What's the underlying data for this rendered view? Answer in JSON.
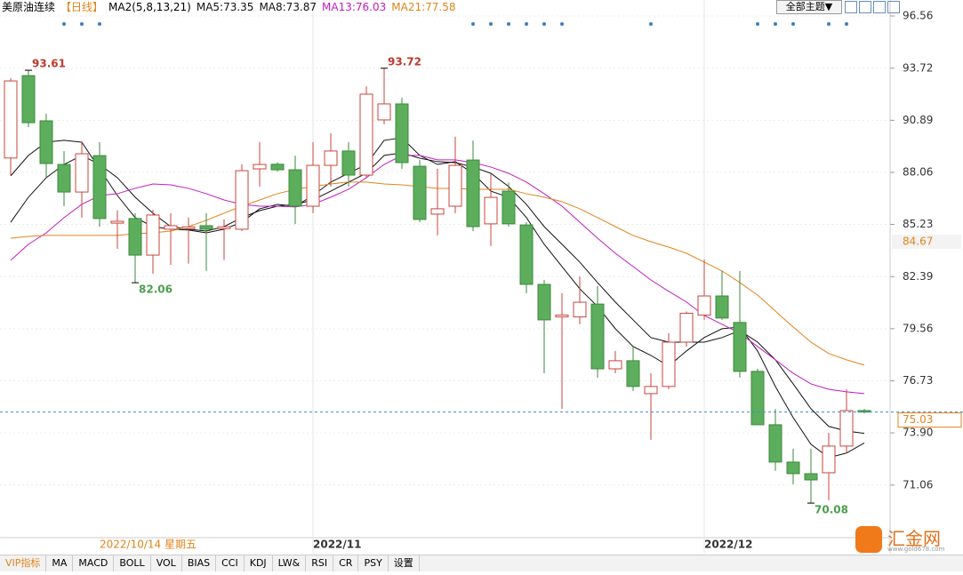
{
  "chart_data": {
    "type": "candlestick",
    "title": "美原油连续",
    "period": "【日线】",
    "indicator": "MA2(5,8,13,21)",
    "theme_button": "全部主题▼",
    "categories": [
      null,
      null,
      null,
      null,
      null,
      null,
      null,
      null,
      null,
      null,
      null,
      null,
      null,
      null,
      null,
      null,
      null,
      "2022/11",
      null,
      null,
      null,
      null,
      null,
      null,
      null,
      null,
      null,
      null,
      null,
      null,
      null,
      null,
      null,
      null,
      null,
      null,
      null,
      null,
      null,
      "2022/12",
      null,
      null,
      null,
      null,
      null,
      null,
      null,
      null,
      null
    ],
    "cursor_label": "2022/10/14 星期五",
    "marker_value": 84.67,
    "ylim": [
      68.2,
      96.56
    ],
    "yticks": [
      96.56,
      93.72,
      90.89,
      88.06,
      85.23,
      82.39,
      79.56,
      76.73,
      {
        "value": 73.9,
        "label": "73.90"
      },
      71.06
    ],
    "grid": true,
    "up_color": "#c8463c",
    "down_color": "#5cae5c",
    "last_line_color": "#3a8bc8",
    "series": [
      {
        "name": "美原油连续",
        "open": [
          88.84,
          93.32,
          90.86,
          88.49,
          86.99,
          88.97,
          85.3,
          85.55,
          83.56,
          84.97,
          85.0,
          85.16,
          85.0,
          84.97,
          88.25,
          88.5,
          88.2,
          86.22,
          88.44,
          89.22,
          87.91,
          90.91,
          91.78,
          88.39,
          85.79,
          86.22,
          88.73,
          85.26,
          87.04,
          85.2,
          81.97,
          80.2,
          80.2,
          80.9,
          77.38,
          77.82,
          76.03,
          76.42,
          78.83,
          80.3,
          81.34,
          79.9,
          77.24,
          74.34,
          72.31,
          71.68,
          71.73,
          73.18,
          75.11
        ],
        "high": [
          93.18,
          93.61,
          91.25,
          89.22,
          89.7,
          89.7,
          86.0,
          85.84,
          86.03,
          85.84,
          85.6,
          85.84,
          85.5,
          88.5,
          89.7,
          88.6,
          88.97,
          89.7,
          90.18,
          89.7,
          92.74,
          93.72,
          92.12,
          88.73,
          88.25,
          90.0,
          89.79,
          88.0,
          87.5,
          85.35,
          82.21,
          81.49,
          82.4,
          81.88,
          78.35,
          78.59,
          77.14,
          79.31,
          80.5,
          83.32,
          82.7,
          82.7,
          77.38,
          75.2,
          73.04,
          73.04,
          73.9,
          76.27,
          75.2
        ],
        "low": [
          87.9,
          90.52,
          87.77,
          86.22,
          85.59,
          85.11,
          83.9,
          82.06,
          82.55,
          83.03,
          83.1,
          82.7,
          83.3,
          84.87,
          87.29,
          88.1,
          85.25,
          85.84,
          87.29,
          87.29,
          87.77,
          90.67,
          88.25,
          85.35,
          84.63,
          85.84,
          84.87,
          84.05,
          85.11,
          81.49,
          77.14,
          75.2,
          79.8,
          76.9,
          77.14,
          76.18,
          73.52,
          76.27,
          78.59,
          80.04,
          80.04,
          76.9,
          74.34,
          71.83,
          71.1,
          70.08,
          70.23,
          72.79,
          74.95
        ],
        "close": [
          93.03,
          90.76,
          88.54,
          86.99,
          89.07,
          85.55,
          85.4,
          83.56,
          85.74,
          85.16,
          85.1,
          84.97,
          85.1,
          88.15,
          88.49,
          88.2,
          86.22,
          88.44,
          89.22,
          87.91,
          92.31,
          91.78,
          88.59,
          85.5,
          86.08,
          88.44,
          85.11,
          86.7,
          85.26,
          81.97,
          80.04,
          80.3,
          81.0,
          77.38,
          77.82,
          76.42,
          76.42,
          78.83,
          80.4,
          81.34,
          80.14,
          77.24,
          74.34,
          72.31,
          71.68,
          71.34,
          73.18,
          75.11,
          75.03
        ]
      }
    ],
    "ma": [
      {
        "name": "MA5",
        "legend": "MA5:73.35",
        "color": "#111111",
        "values": [
          87.87,
          88.98,
          89.7,
          89.8,
          89.7,
          88.25,
          86.8,
          85.6,
          85.11,
          84.97,
          84.92,
          84.77,
          84.97,
          85.35,
          86.08,
          86.32,
          86.22,
          86.8,
          87.53,
          88.01,
          88.49,
          89.8,
          89.94,
          88.98,
          88.49,
          88.64,
          88.01,
          87.04,
          86.71,
          85.6,
          84.15,
          82.94,
          81.73,
          80.77,
          79.56,
          78.59,
          78.11,
          77.53,
          78.35,
          79.08,
          79.56,
          79.65,
          78.35,
          76.42,
          74.73,
          73.28,
          72.55,
          72.8,
          73.35
        ]
      },
      {
        "name": "MA8",
        "legend": "MA8:73.87",
        "color": "#111111",
        "values": [
          85.35,
          86.71,
          87.77,
          88.49,
          88.98,
          88.49,
          87.77,
          86.71,
          85.84,
          85.11,
          84.97,
          84.87,
          85.11,
          85.6,
          85.98,
          86.22,
          86.32,
          86.56,
          87.04,
          87.53,
          88.01,
          88.98,
          89.12,
          88.83,
          88.64,
          88.59,
          88.35,
          88.01,
          87.29,
          86.32,
          85.11,
          84.15,
          83.18,
          82.07,
          81.01,
          80.04,
          79.08,
          78.83,
          78.83,
          78.83,
          79.08,
          79.46,
          78.83,
          77.87,
          76.56,
          75.21,
          74.25,
          74.0,
          73.87
        ]
      },
      {
        "name": "MA13",
        "legend": "MA13:76.03",
        "color": "#c21cc2",
        "values": [
          83.28,
          84.15,
          84.77,
          85.6,
          86.32,
          86.8,
          86.9,
          87.19,
          87.43,
          87.38,
          87.19,
          86.9,
          86.56,
          86.32,
          86.22,
          86.22,
          86.18,
          86.32,
          86.71,
          87.14,
          87.77,
          88.49,
          88.98,
          88.98,
          88.74,
          88.74,
          88.59,
          88.35,
          88.01,
          87.53,
          86.9,
          86.22,
          85.35,
          84.48,
          83.66,
          82.94,
          82.21,
          81.59,
          81.01,
          80.28,
          79.8,
          79.32,
          78.59,
          77.87,
          77.14,
          76.56,
          76.27,
          76.13,
          76.03
        ]
      },
      {
        "name": "MA21",
        "legend": "MA21:77.58",
        "color": "#e0851c",
        "values": [
          84.48,
          84.58,
          84.63,
          84.63,
          84.63,
          84.63,
          84.63,
          84.73,
          84.77,
          84.87,
          85.11,
          85.45,
          85.84,
          86.22,
          86.56,
          86.9,
          87.14,
          87.29,
          87.43,
          87.53,
          87.53,
          87.43,
          87.38,
          87.29,
          87.19,
          87.19,
          87.14,
          87.14,
          87.14,
          86.9,
          86.71,
          86.47,
          86.08,
          85.6,
          85.11,
          84.63,
          84.29,
          84.0,
          83.66,
          83.18,
          82.7,
          82.07,
          81.39,
          80.52,
          79.65,
          78.83,
          78.21,
          77.87,
          77.58
        ]
      }
    ]
  },
  "tabs": [
    "VIP指标",
    "MA",
    "MACD",
    "BOLL",
    "VOL",
    "BIAS",
    "CCI",
    "KDJ",
    "LW&",
    "RSI",
    "CR",
    "PSY",
    "设置"
  ],
  "logo": {
    "name": "汇金网",
    "url": "www.gold678.com"
  }
}
